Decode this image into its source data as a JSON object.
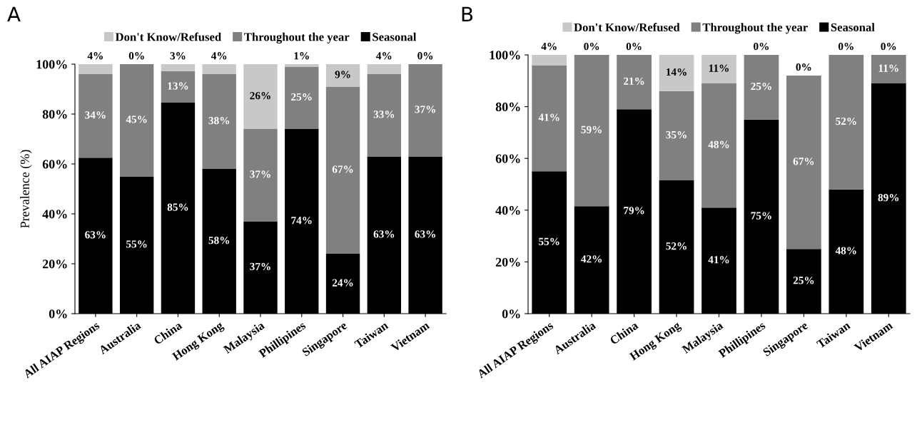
{
  "chart_data": [
    {
      "type": "bar",
      "title": "A",
      "ylabel": "Prevalence (%)",
      "stacked": true,
      "legend": "top",
      "data_labels": false,
      "grid": false,
      "categories": [
        "All AIAP Regions",
        "Australia",
        "China",
        "Hong Kong",
        "Malaysia",
        "Phillipines",
        "Singapore",
        "Taiwan",
        "Vietnam"
      ],
      "ylim": [
        0,
        100
      ],
      "yticks": [
        {
          "value": 0,
          "label": "0%"
        },
        {
          "value": 20,
          "label": "20%"
        },
        {
          "value": 40,
          "label": "40%"
        },
        {
          "value": 60,
          "label": "60%"
        },
        {
          "value": 80,
          "label": "80%"
        },
        {
          "value": 100,
          "label": "100%"
        }
      ],
      "series": [
        {
          "name": "Seasonal",
          "color": "#000000",
          "values": [
            62.5,
            55,
            84.6,
            58,
            37,
            74,
            24,
            63,
            63
          ],
          "value_labels": [
            "63%",
            "55%",
            "85%",
            "58%",
            "37%",
            "74%",
            "24%",
            "63%",
            "63%"
          ]
        },
        {
          "name": "Throughout the year",
          "color": "#808080",
          "values": [
            33.5,
            45,
            12.6,
            38,
            37,
            25,
            67,
            33,
            37
          ],
          "value_labels": [
            "34%",
            "45%",
            "13%",
            "38%",
            "37%",
            "25%",
            "67%",
            "33%",
            "37%"
          ]
        },
        {
          "name": "Don't Know/Refused",
          "color": "#c8c8c8",
          "values": [
            4,
            0,
            2.8,
            4,
            26,
            1,
            9,
            4,
            0
          ],
          "value_labels": [
            "4%",
            "0%",
            "3%",
            "4%",
            "26%",
            "1%",
            "9%",
            "4%",
            "0%"
          ]
        }
      ]
    },
    {
      "type": "bar",
      "title": "B",
      "stacked": true,
      "legend": "top",
      "data_labels": false,
      "grid": false,
      "categories": [
        "All AIAP Regions",
        "Australia",
        "China",
        "Hong Kong",
        "Malaysia",
        "Phillipines",
        "Singapore",
        "Taiwan",
        "Vietnam"
      ],
      "ylim": [
        0,
        100
      ],
      "yticks": [
        {
          "value": 0,
          "label": "0%"
        },
        {
          "value": 20,
          "label": "20%"
        },
        {
          "value": 40,
          "label": "40%"
        },
        {
          "value": 60,
          "label": "60%"
        },
        {
          "value": 80,
          "label": "80%"
        },
        {
          "value": 100,
          "label": "100%"
        }
      ],
      "series": [
        {
          "name": "Seasonal",
          "color": "#000000",
          "values": [
            55,
            41.5,
            79,
            51.5,
            41,
            75,
            25,
            48,
            89
          ],
          "value_labels": [
            "55%",
            "42%",
            "79%",
            "52%",
            "41%",
            "75%",
            "25%",
            "48%",
            "89%"
          ]
        },
        {
          "name": "Throughout the year",
          "color": "#808080",
          "values": [
            41,
            58.5,
            21,
            34.5,
            48,
            25,
            67,
            52,
            11
          ],
          "value_labels": [
            "41%",
            "59%",
            "21%",
            "35%",
            "48%",
            "25%",
            "67%",
            "52%",
            "11%"
          ]
        },
        {
          "name": "Don't Know/Refused",
          "color": "#c8c8c8",
          "values": [
            4,
            0,
            0,
            14,
            11,
            0,
            0,
            0,
            0
          ],
          "value_labels": [
            "4%",
            "0%",
            "0%",
            "14%",
            "11%",
            "0%",
            "0%",
            "0%",
            "0%"
          ]
        }
      ]
    }
  ]
}
